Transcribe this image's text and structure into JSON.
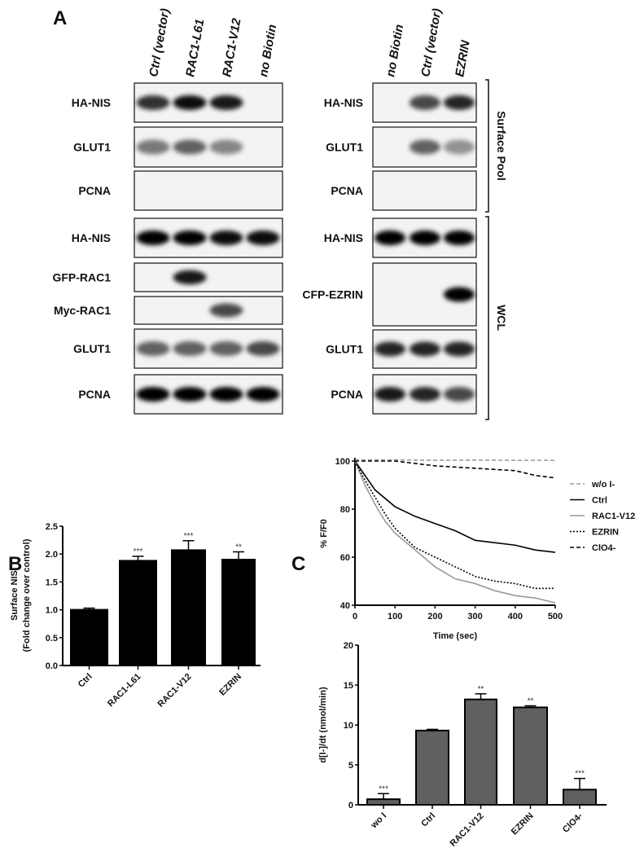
{
  "panel_labels": {
    "a": "A",
    "b": "B",
    "c": "C"
  },
  "blot_left": {
    "lanes": [
      "Ctrl (vector)",
      "RAC1-L61",
      "RAC1-V12",
      "no Biotin"
    ],
    "rows": [
      {
        "label": "HA-NIS",
        "bands": [
          0.8,
          0.95,
          0.9,
          0
        ]
      },
      {
        "label": "GLUT1",
        "bands": [
          0.5,
          0.6,
          0.45,
          0
        ]
      },
      {
        "label": "PCNA",
        "bands": [
          0,
          0,
          0,
          0
        ]
      },
      {
        "label": "HA-NIS",
        "bands": [
          1,
          1,
          0.95,
          0.95
        ]
      },
      {
        "label": "GFP-RAC1",
        "bands": [
          0,
          0.9,
          0,
          0
        ]
      },
      {
        "label": "Myc-RAC1",
        "bands": [
          0,
          0,
          0.7,
          0
        ]
      },
      {
        "label": "GLUT1",
        "bands": [
          0.6,
          0.6,
          0.6,
          0.7
        ]
      },
      {
        "label": "PCNA",
        "bands": [
          1,
          1,
          1,
          1
        ]
      }
    ]
  },
  "blot_right": {
    "lanes": [
      "no Biotin",
      "Ctrl (vector)",
      "EZRIN"
    ],
    "rows": [
      {
        "label": "HA-NIS",
        "bands": [
          0,
          0.7,
          0.85
        ]
      },
      {
        "label": "GLUT1",
        "bands": [
          0,
          0.6,
          0.4
        ]
      },
      {
        "label": "PCNA",
        "bands": [
          0,
          0,
          0
        ]
      },
      {
        "label": "HA-NIS",
        "bands": [
          1,
          1,
          1
        ]
      },
      {
        "label": "CFP-EZRIN",
        "bands": [
          0,
          0,
          1
        ]
      },
      {
        "label": "GLUT1",
        "bands": [
          0.85,
          0.85,
          0.85
        ]
      },
      {
        "label": "PCNA",
        "bands": [
          0.9,
          0.85,
          0.7
        ]
      }
    ],
    "brackets": [
      "Surface Pool",
      "WCL"
    ]
  },
  "chart_data": [
    {
      "type": "bar",
      "panel": "B",
      "categories": [
        "Ctrl",
        "RAC1-L61",
        "RAC1-V12",
        "EZRIN"
      ],
      "values": [
        1.0,
        1.88,
        2.07,
        1.9
      ],
      "errors": [
        0.03,
        0.08,
        0.17,
        0.14
      ],
      "annotations": [
        "",
        "***",
        "***",
        "**"
      ],
      "ylabel": "Surface NIS",
      "ylabel2": "(Fold change over control)",
      "ylim": [
        0,
        2.5
      ],
      "yticks": [
        "0.0",
        "0.5",
        "1.0",
        "1.5",
        "2.0",
        "2.5"
      ],
      "color": "#000000"
    },
    {
      "type": "line",
      "panel": "C",
      "xlabel": "Time (sec)",
      "ylabel": "% F/F0",
      "xlim": [
        0,
        500
      ],
      "ylim": [
        40,
        100
      ],
      "xticks": [
        "0",
        "100",
        "200",
        "300",
        "400",
        "500"
      ],
      "yticks": [
        "40",
        "60",
        "80",
        "100"
      ],
      "legend": "right",
      "series": [
        {
          "name": "w/o I-",
          "style": "dashed",
          "color": "#999999",
          "x": [
            0,
            100,
            200,
            300,
            400,
            500
          ],
          "y": [
            100.5,
            100.5,
            100.3,
            100.4,
            100.3,
            100.3
          ]
        },
        {
          "name": "Ctrl",
          "style": "solid",
          "color": "#000000",
          "x": [
            0,
            25,
            50,
            100,
            150,
            200,
            250,
            300,
            350,
            400,
            450,
            500
          ],
          "y": [
            100,
            94,
            88,
            81,
            77,
            74,
            71,
            67,
            66,
            65,
            63,
            62
          ]
        },
        {
          "name": "RAC1-V12",
          "style": "solid",
          "color": "#999999",
          "x": [
            0,
            25,
            50,
            75,
            100,
            150,
            200,
            250,
            300,
            350,
            400,
            450,
            500
          ],
          "y": [
            100,
            90,
            82,
            75,
            70,
            63,
            56,
            51,
            49,
            46,
            44,
            43,
            41
          ]
        },
        {
          "name": "EZRIN",
          "style": "dotted",
          "color": "#000000",
          "x": [
            0,
            25,
            50,
            75,
            100,
            150,
            200,
            250,
            300,
            350,
            400,
            450,
            500
          ],
          "y": [
            100,
            92,
            85,
            78,
            72,
            64,
            60,
            56,
            52,
            50,
            49,
            47,
            47
          ]
        },
        {
          "name": "ClO4-",
          "style": "dashed",
          "color": "#000000",
          "x": [
            0,
            100,
            200,
            300,
            400,
            450,
            500
          ],
          "y": [
            100,
            100,
            98,
            97,
            96,
            94,
            93
          ]
        }
      ]
    },
    {
      "type": "bar",
      "panel": "C",
      "categories": [
        "wo I",
        "Ctrl",
        "RAC1-V12",
        "EZRIN",
        "ClO4-"
      ],
      "values": [
        0.7,
        9.3,
        13.2,
        12.2,
        1.9
      ],
      "errors": [
        0.7,
        0.15,
        0.7,
        0.2,
        1.4
      ],
      "annotations": [
        "***",
        "",
        "**",
        "**",
        "***"
      ],
      "ylabel": "d[I-]/dt (nmol/min)",
      "ylim": [
        0,
        20
      ],
      "yticks": [
        "0",
        "5",
        "10",
        "15",
        "20"
      ],
      "color": "#606060"
    }
  ]
}
